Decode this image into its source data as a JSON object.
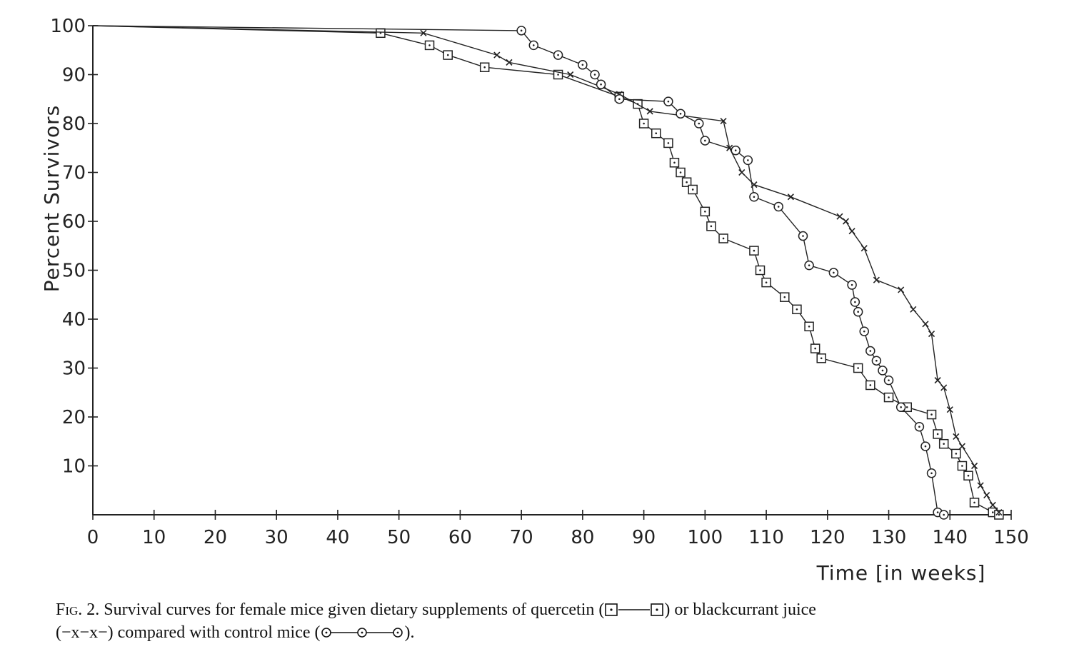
{
  "chart_data": {
    "type": "line",
    "xlabel": "Time [in weeks]",
    "ylabel": "Percent Survivors",
    "xlim": [
      0,
      150
    ],
    "ylim": [
      0,
      100
    ],
    "x_ticks": [
      "0",
      "10",
      "20",
      "30",
      "40",
      "50",
      "60",
      "70",
      "80",
      "90",
      "100",
      "110",
      "120",
      "130",
      "140",
      "150"
    ],
    "y_ticks": [
      "10",
      "20",
      "30",
      "40",
      "50",
      "60",
      "70",
      "80",
      "90",
      "100"
    ],
    "grid": false,
    "series": [
      {
        "key": "quercetin",
        "marker": "dotted-square",
        "color": "#222222",
        "x": [
          0,
          47,
          55,
          58,
          64,
          76,
          86,
          89,
          90,
          92,
          94,
          95,
          96,
          97,
          98,
          100,
          101,
          103,
          108,
          109,
          110,
          113,
          115,
          117,
          118,
          119,
          125,
          127,
          130,
          133,
          137,
          138,
          139,
          141,
          142,
          143,
          144,
          147,
          148
        ],
        "y": [
          100,
          98.5,
          96,
          94,
          91.5,
          90,
          85.5,
          84,
          80,
          78,
          76,
          72,
          70,
          68,
          66.5,
          62,
          59,
          56.5,
          54,
          50,
          47.5,
          44.5,
          42,
          38.5,
          34,
          32,
          30,
          26.5,
          24,
          22,
          20.5,
          16.5,
          14.5,
          12.5,
          10,
          8,
          2.5,
          0.5,
          0
        ]
      },
      {
        "key": "blackcurrant",
        "marker": "x",
        "color": "#222222",
        "x": [
          0,
          54,
          66,
          68,
          78,
          86,
          91,
          103,
          104,
          106,
          108,
          114,
          122,
          123,
          124,
          126,
          128,
          132,
          134,
          136,
          137,
          138,
          139,
          140,
          141,
          142,
          144,
          145,
          146,
          147,
          148
        ],
        "y": [
          100,
          98.5,
          94,
          92.5,
          90,
          86,
          82.5,
          80.5,
          75,
          70,
          67.5,
          65,
          61,
          60,
          58,
          54.5,
          48,
          46,
          42,
          39,
          37,
          27.5,
          26,
          21.5,
          16,
          14,
          10,
          6,
          4,
          2,
          0.5
        ]
      },
      {
        "key": "control",
        "marker": "dotted-circle",
        "color": "#222222",
        "x": [
          0,
          70,
          72,
          76,
          80,
          82,
          83,
          86,
          94,
          96,
          99,
          100,
          105,
          107,
          108,
          112,
          116,
          117,
          121,
          124,
          124.5,
          125,
          126,
          127,
          128,
          129,
          130,
          132,
          135,
          136,
          137,
          138,
          139
        ],
        "y": [
          100,
          99,
          96,
          94,
          92,
          90,
          88,
          85,
          84.5,
          82,
          80,
          76.5,
          74.5,
          72.5,
          65,
          63,
          57,
          51,
          49.5,
          47,
          43.5,
          41.5,
          37.5,
          33.5,
          31.5,
          29.5,
          27.5,
          22,
          18,
          14,
          8.5,
          0.5,
          0
        ]
      }
    ]
  },
  "caption": {
    "prefix": "Fig.",
    "text_1": " 2. Survival curves for female mice given dietary supplements of quercetin (",
    "text_2": ") or blackcurrant juice",
    "text_3": "(−x−x−) compared with control mice (",
    "text_4": ")."
  }
}
